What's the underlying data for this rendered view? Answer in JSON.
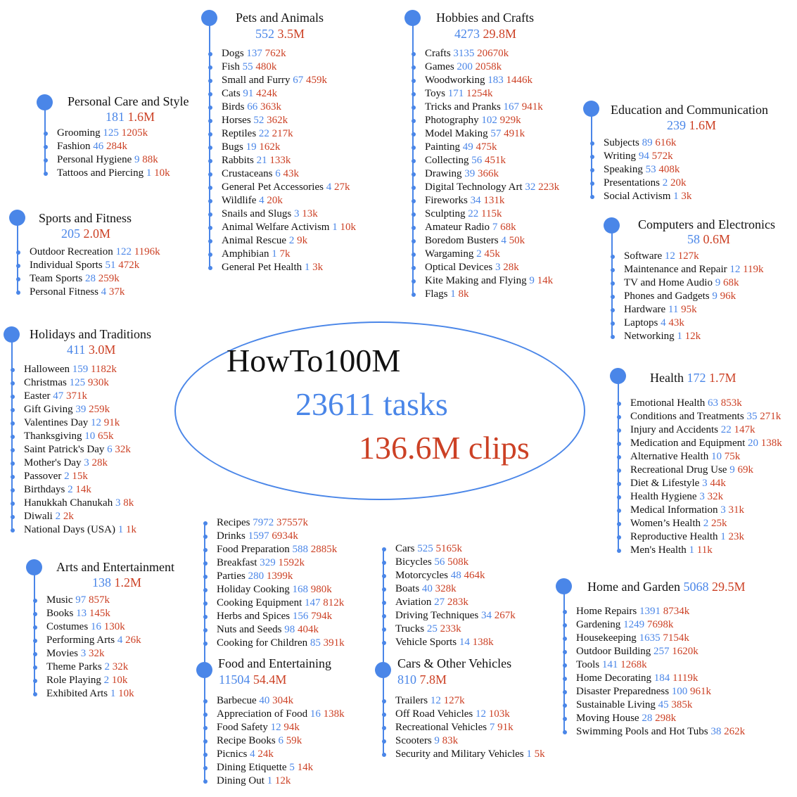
{
  "center": {
    "title": "HowTo100M",
    "tasks": "23611 tasks",
    "clips": "136.6M clips"
  },
  "categories": [
    {
      "id": "pets",
      "name": "Pets and Animals",
      "n": "552",
      "c": "3.5M",
      "items": [
        [
          "Dogs",
          "137",
          "762k"
        ],
        [
          "Fish",
          "55",
          "480k"
        ],
        [
          "Small and Furry",
          "67",
          "459k"
        ],
        [
          "Cats",
          "91",
          "424k"
        ],
        [
          "Birds",
          "66",
          "363k"
        ],
        [
          "Horses",
          "52",
          "362k"
        ],
        [
          "Reptiles",
          "22",
          "217k"
        ],
        [
          "Bugs",
          "19",
          "162k"
        ],
        [
          "Rabbits",
          "21",
          "133k"
        ],
        [
          "Crustaceans",
          "6",
          "43k"
        ],
        [
          "General Pet Accessories",
          "4",
          "27k"
        ],
        [
          "Wildlife",
          "4",
          "20k"
        ],
        [
          "Snails and Slugs",
          "3",
          "13k"
        ],
        [
          "Animal Welfare Activism",
          "1",
          "10k"
        ],
        [
          "Animal Rescue",
          "2",
          "9k"
        ],
        [
          "Amphibian",
          "1",
          "7k"
        ],
        [
          "General Pet Health",
          "1",
          "3k"
        ]
      ]
    },
    {
      "id": "hobbies",
      "name": "Hobbies and Crafts",
      "n": "4273",
      "c": "29.8M",
      "items": [
        [
          "Crafts",
          "3135",
          "20670k"
        ],
        [
          "Games",
          "200",
          "2058k"
        ],
        [
          "Woodworking",
          "183",
          "1446k"
        ],
        [
          "Toys",
          "171",
          "1254k"
        ],
        [
          "Tricks and Pranks",
          "167",
          "941k"
        ],
        [
          "Photography",
          "102",
          "929k"
        ],
        [
          "Model Making",
          "57",
          "491k"
        ],
        [
          "Painting",
          "49",
          "475k"
        ],
        [
          "Collecting",
          "56",
          "451k"
        ],
        [
          "Drawing",
          "39",
          "366k"
        ],
        [
          "Digital Technology Art",
          "32",
          "223k"
        ],
        [
          "Fireworks",
          "34",
          "131k"
        ],
        [
          "Sculpting",
          "22",
          "115k"
        ],
        [
          "Amateur Radio",
          "7",
          "68k"
        ],
        [
          "Boredom Busters",
          "4",
          "50k"
        ],
        [
          "Wargaming",
          "2",
          "45k"
        ],
        [
          "Optical Devices",
          "3",
          "28k"
        ],
        [
          "Kite Making and Flying",
          "9",
          "14k"
        ],
        [
          "Flags",
          "1",
          "8k"
        ]
      ]
    },
    {
      "id": "personal",
      "name": "Personal Care and Style",
      "n": "181",
      "c": "1.6M",
      "items": [
        [
          "Grooming",
          "125",
          "1205k"
        ],
        [
          "Fashion",
          "46",
          "284k"
        ],
        [
          "Personal Hygiene",
          "9",
          "88k"
        ],
        [
          "Tattoos and Piercing",
          "1",
          "10k"
        ]
      ]
    },
    {
      "id": "education",
      "name": "Education and Communication",
      "n": "239",
      "c": "1.6M",
      "items": [
        [
          "Subjects",
          "89",
          "616k"
        ],
        [
          "Writing",
          "94",
          "572k"
        ],
        [
          "Speaking",
          "53",
          "408k"
        ],
        [
          "Presentations",
          "2",
          "20k"
        ],
        [
          "Social Activism",
          "1",
          "3k"
        ]
      ]
    },
    {
      "id": "sports",
      "name": "Sports and Fitness",
      "n": "205",
      "c": "2.0M",
      "items": [
        [
          "Outdoor Recreation",
          "122",
          "1196k"
        ],
        [
          "Individual Sports",
          "51",
          "472k"
        ],
        [
          "Team Sports",
          "28",
          "259k"
        ],
        [
          "Personal Fitness",
          "4",
          "37k"
        ]
      ]
    },
    {
      "id": "computers",
      "name": "Computers and Electronics",
      "n": "58",
      "c": "0.6M",
      "items": [
        [
          "Software",
          "12",
          "127k"
        ],
        [
          "Maintenance and Repair",
          "12",
          "119k"
        ],
        [
          "TV and Home Audio",
          "9",
          "68k"
        ],
        [
          "Phones and Gadgets",
          "9",
          "96k"
        ],
        [
          "Hardware",
          "11",
          "95k"
        ],
        [
          "Laptops",
          "4",
          "43k"
        ],
        [
          "Networking",
          "1",
          "12k"
        ]
      ]
    },
    {
      "id": "holidays",
      "name": "Holidays and Traditions",
      "n": "411",
      "c": "3.0M",
      "items": [
        [
          "Halloween",
          "159",
          "1182k"
        ],
        [
          "Christmas",
          "125",
          "930k"
        ],
        [
          "Easter",
          "47",
          "371k"
        ],
        [
          "Gift Giving",
          "39",
          "259k"
        ],
        [
          "Valentines Day",
          "12",
          "91k"
        ],
        [
          "Thanksgiving",
          "10",
          "65k"
        ],
        [
          "Saint Patrick's Day",
          "6",
          "32k"
        ],
        [
          "Mother's Day",
          "3",
          "28k"
        ],
        [
          "Passover",
          "2",
          "15k"
        ],
        [
          "Birthdays",
          "2",
          "14k"
        ],
        [
          "Hanukkah Chanukah",
          "3",
          "8k"
        ],
        [
          "Diwali",
          "2",
          "2k"
        ],
        [
          "National Days (USA)",
          "1",
          "1k"
        ]
      ]
    },
    {
      "id": "health",
      "name": "Health",
      "n": "172",
      "c": "1.7M",
      "items": [
        [
          "Emotional Health",
          "63",
          "853k"
        ],
        [
          "Conditions and Treatments",
          "35",
          "271k"
        ],
        [
          "Injury and Accidents",
          "22",
          "147k"
        ],
        [
          "Medication and Equipment",
          "20",
          "138k"
        ],
        [
          "Alternative Health",
          "10",
          "75k"
        ],
        [
          "Recreational Drug Use",
          "9",
          "69k"
        ],
        [
          "Diet & Lifestyle",
          "3",
          "44k"
        ],
        [
          "Health Hygiene",
          "3",
          "32k"
        ],
        [
          "Medical Information",
          "3",
          "31k"
        ],
        [
          "Women’s Health",
          "2",
          "25k"
        ],
        [
          "Reproductive Health",
          "1",
          "23k"
        ],
        [
          "Men's Health",
          "1",
          "11k"
        ]
      ]
    },
    {
      "id": "arts",
      "name": "Arts and Entertainment",
      "n": "138",
      "c": "1.2M",
      "items": [
        [
          "Music",
          "97",
          "857k"
        ],
        [
          "Books",
          "13",
          "145k"
        ],
        [
          "Costumes",
          "16",
          "130k"
        ],
        [
          "Performing Arts",
          "4",
          "26k"
        ],
        [
          "Movies",
          "3",
          "32k"
        ],
        [
          "Theme Parks",
          "2",
          "32k"
        ],
        [
          "Role Playing",
          "2",
          "10k"
        ],
        [
          "Exhibited Arts",
          "1",
          "10k"
        ]
      ]
    },
    {
      "id": "food",
      "name": "Food and Entertaining",
      "n": "11504",
      "c": "54.4M",
      "items_above": [
        [
          "Recipes",
          "7972",
          "37557k"
        ],
        [
          "Drinks",
          "1597",
          "6934k"
        ],
        [
          "Food Preparation",
          "588",
          "2885k"
        ],
        [
          "Breakfast",
          "329",
          "1592k"
        ],
        [
          "Parties",
          "280",
          "1399k"
        ],
        [
          "Holiday Cooking",
          "168",
          "980k"
        ],
        [
          "Cooking Equipment",
          "147",
          "812k"
        ],
        [
          "Herbs and Spices",
          "156",
          "794k"
        ],
        [
          "Nuts and Seeds",
          "98",
          "404k"
        ],
        [
          "Cooking for Children",
          "85",
          "391k"
        ]
      ],
      "items": [
        [
          "Barbecue",
          "40",
          "304k"
        ],
        [
          "Appreciation of Food",
          "16",
          "138k"
        ],
        [
          "Food Safety",
          "12",
          "94k"
        ],
        [
          "Recipe Books",
          "6",
          "59k"
        ],
        [
          "Picnics",
          "4",
          "24k"
        ],
        [
          "Dining Etiquette",
          "5",
          "14k"
        ],
        [
          "Dining Out",
          "1",
          "12k"
        ]
      ]
    },
    {
      "id": "cars",
      "name": "Cars & Other Vehicles",
      "n": "810",
      "c": "7.8M",
      "items_above": [
        [
          "Cars",
          "525",
          "5165k"
        ],
        [
          "Bicycles",
          "56",
          "508k"
        ],
        [
          "Motorcycles",
          "48",
          "464k"
        ],
        [
          "Boats",
          "40",
          "328k"
        ],
        [
          "Aviation",
          "27",
          "283k"
        ],
        [
          "Driving Techniques",
          "34",
          "267k"
        ],
        [
          "Trucks",
          "25",
          "233k"
        ],
        [
          "Vehicle Sports",
          "14",
          "138k"
        ]
      ],
      "items": [
        [
          "Trailers",
          "12",
          "127k"
        ],
        [
          "Off Road Vehicles",
          "12",
          "103k"
        ],
        [
          "Recreational Vehicles",
          "7",
          "91k"
        ],
        [
          "Scooters",
          "9",
          "83k"
        ],
        [
          "Security and Military Vehicles",
          "1",
          "5k"
        ]
      ]
    },
    {
      "id": "home",
      "name": "Home and Garden",
      "n": "5068",
      "c": "29.5M",
      "items": [
        [
          "Home Repairs",
          "1391",
          "8734k"
        ],
        [
          "Gardening",
          "1249",
          "7698k"
        ],
        [
          "Housekeeping",
          "1635",
          "7154k"
        ],
        [
          "Outdoor Building",
          "257",
          "1620k"
        ],
        [
          "Tools",
          "141",
          "1268k"
        ],
        [
          "Home Decorating",
          "184",
          "1119k"
        ],
        [
          "Disaster Preparedness",
          "100",
          "961k"
        ],
        [
          "Sustainable Living",
          "45",
          "385k"
        ],
        [
          "Moving House",
          "28",
          "298k"
        ],
        [
          "Swimming Pools and Hot Tubs",
          "38",
          "262k"
        ]
      ]
    }
  ]
}
